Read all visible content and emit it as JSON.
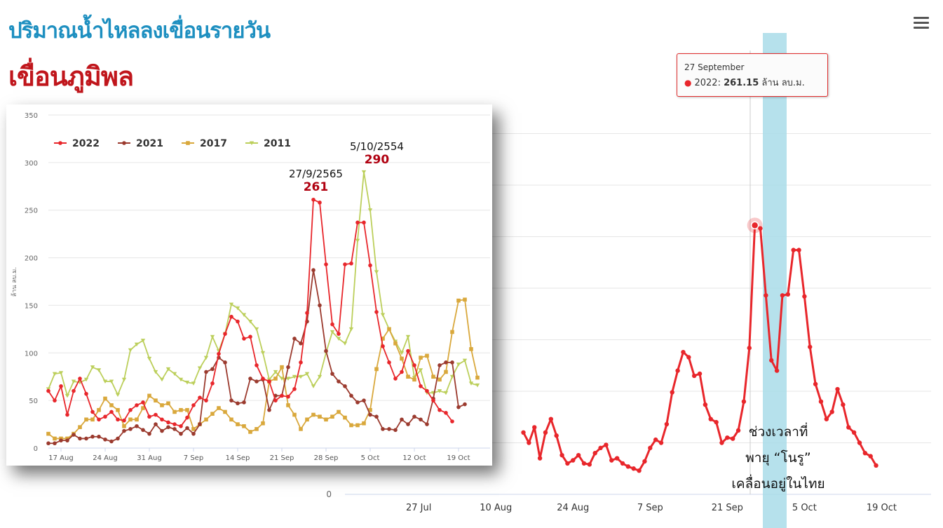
{
  "title": "ปริมาณน้ำไหลลงเขื่อนรายวัน",
  "subtitle": "เขื่อนภูมิพล",
  "menu_icon": "hamburger-menu-icon",
  "main_chart": {
    "x_ticks": [
      "27 Jul",
      "10 Aug",
      "24 Aug",
      "7 Sep",
      "21 Sep",
      "5 Oct",
      "19 Oct"
    ],
    "y_tick_zero": "0",
    "tooltip": {
      "date": "27 September",
      "series": "2022",
      "value": "261.15",
      "unit": "ล้าน ลบ.ม."
    },
    "highlight_note": [
      "ช่วงเวลาที่",
      "พายุ “โนรู”",
      "เคลื่อนอยู่ในไทย"
    ],
    "colors": {
      "line_2022": "#e8262b",
      "highlight": "#a9dce9"
    }
  },
  "chart_data": {
    "type": "line",
    "ylabel": "ล้าน ลบ.ม.",
    "ylim": [
      0,
      350
    ],
    "y_ticks": [
      "0",
      "50",
      "100",
      "150",
      "200",
      "250",
      "300",
      "350"
    ],
    "x_ticks": [
      "17 Aug",
      "24 Aug",
      "31 Aug",
      "7 Sep",
      "14 Sep",
      "21 Sep",
      "28 Sep",
      "5 Oct",
      "12 Oct",
      "19 Oct"
    ],
    "x_start_day": 15,
    "legend": "top-left",
    "series": [
      {
        "name": "2022",
        "color": "#e8262b",
        "marker": "circle",
        "start": 0,
        "values": [
          60,
          50,
          65,
          35,
          60,
          73,
          57,
          38,
          30,
          33,
          38,
          30,
          29,
          40,
          45,
          48,
          33,
          35,
          30,
          27,
          25,
          23,
          32,
          45,
          53,
          50,
          68,
          99,
          120,
          138,
          133,
          115,
          117,
          87,
          73,
          70,
          50,
          55,
          54,
          62,
          90,
          142,
          261,
          258,
          193,
          130,
          120,
          193,
          194,
          237,
          237,
          192,
          143,
          107,
          90,
          73,
          80,
          102,
          87,
          65,
          60,
          50,
          40,
          37,
          28
        ]
      },
      {
        "name": "2021",
        "color": "#9b3a2e",
        "marker": "circle",
        "start": 0,
        "values": [
          5,
          5,
          8,
          8,
          14,
          10,
          10,
          12,
          12,
          9,
          7,
          10,
          18,
          20,
          23,
          19,
          15,
          25,
          18,
          22,
          20,
          15,
          21,
          15,
          25,
          80,
          83,
          95,
          90,
          50,
          47,
          48,
          73,
          70,
          72,
          40,
          55,
          55,
          85,
          115,
          110,
          133,
          187,
          150,
          102,
          78,
          70,
          65,
          55,
          48,
          50,
          35,
          33,
          20,
          20,
          19,
          30,
          25,
          33,
          30,
          25,
          52,
          87,
          90,
          90,
          43,
          46
        ]
      },
      {
        "name": "2017",
        "color": "#d9a83c",
        "marker": "square",
        "start": 0,
        "values": [
          15,
          10,
          10,
          10,
          15,
          22,
          30,
          30,
          40,
          52,
          45,
          40,
          23,
          30,
          30,
          42,
          55,
          50,
          45,
          47,
          38,
          40,
          40,
          20,
          25,
          30,
          36,
          42,
          38,
          30,
          25,
          23,
          17,
          20,
          26,
          70,
          73,
          85,
          45,
          35,
          20,
          30,
          35,
          33,
          30,
          33,
          38,
          32,
          24,
          24,
          26,
          40,
          83,
          115,
          125,
          110,
          94,
          75,
          72,
          95,
          97,
          75,
          72,
          80,
          122,
          155,
          156,
          104,
          74
        ]
      },
      {
        "name": "2011",
        "color": "#bccf5b",
        "marker": "triangle",
        "start": 0,
        "values": [
          62,
          78,
          79,
          55,
          70,
          69,
          72,
          85,
          82,
          70,
          70,
          56,
          72,
          103,
          109,
          113,
          94,
          80,
          72,
          83,
          78,
          72,
          69,
          68,
          84,
          95,
          117,
          102,
          120,
          151,
          147,
          140,
          133,
          125,
          100,
          72,
          80,
          73,
          73,
          75,
          75,
          78,
          65,
          75,
          100,
          122,
          115,
          110,
          125,
          218,
          290,
          250,
          185,
          140,
          125,
          112,
          100,
          117,
          74,
          82,
          58,
          58,
          60,
          58,
          75,
          88,
          92,
          68,
          66
        ]
      }
    ],
    "annotations": [
      {
        "label": "27/9/2565",
        "value": "261"
      },
      {
        "label": "5/10/2554",
        "value": "290"
      }
    ]
  }
}
